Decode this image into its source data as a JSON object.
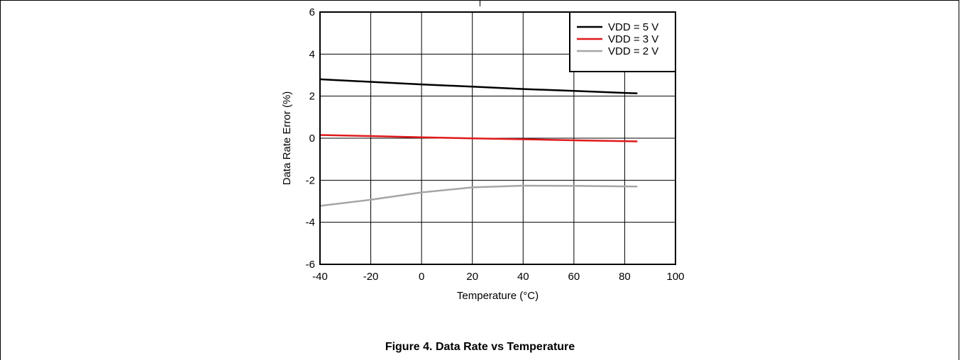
{
  "caption": "Figure 4. Data Rate vs Temperature",
  "chart_data": {
    "type": "line",
    "title": "",
    "xlabel": "Temperature (°C)",
    "ylabel": "Data Rate Error (%)",
    "xlim": [
      -40,
      100
    ],
    "ylim": [
      -6,
      6
    ],
    "xticks": [
      -40,
      -20,
      0,
      20,
      40,
      60,
      80,
      100
    ],
    "yticks": [
      -6,
      -4,
      -2,
      0,
      2,
      4,
      6
    ],
    "grid": true,
    "legend_position": "top-right",
    "series": [
      {
        "name": "VDD = 5 V",
        "color": "#000000",
        "x": [
          -40,
          -20,
          0,
          20,
          40,
          60,
          85
        ],
        "y": [
          2.8,
          2.68,
          2.56,
          2.45,
          2.34,
          2.25,
          2.13
        ]
      },
      {
        "name": "VDD = 3 V",
        "color": "#e0191b",
        "x": [
          -40,
          -20,
          0,
          20,
          40,
          60,
          85
        ],
        "y": [
          0.15,
          0.1,
          0.04,
          -0.01,
          -0.05,
          -0.1,
          -0.15
        ]
      },
      {
        "name": "VDD = 2 V",
        "color": "#a6a6a6",
        "x": [
          -40,
          -20,
          0,
          20,
          40,
          60,
          85
        ],
        "y": [
          -3.22,
          -2.93,
          -2.58,
          -2.34,
          -2.26,
          -2.27,
          -2.3
        ]
      }
    ]
  }
}
